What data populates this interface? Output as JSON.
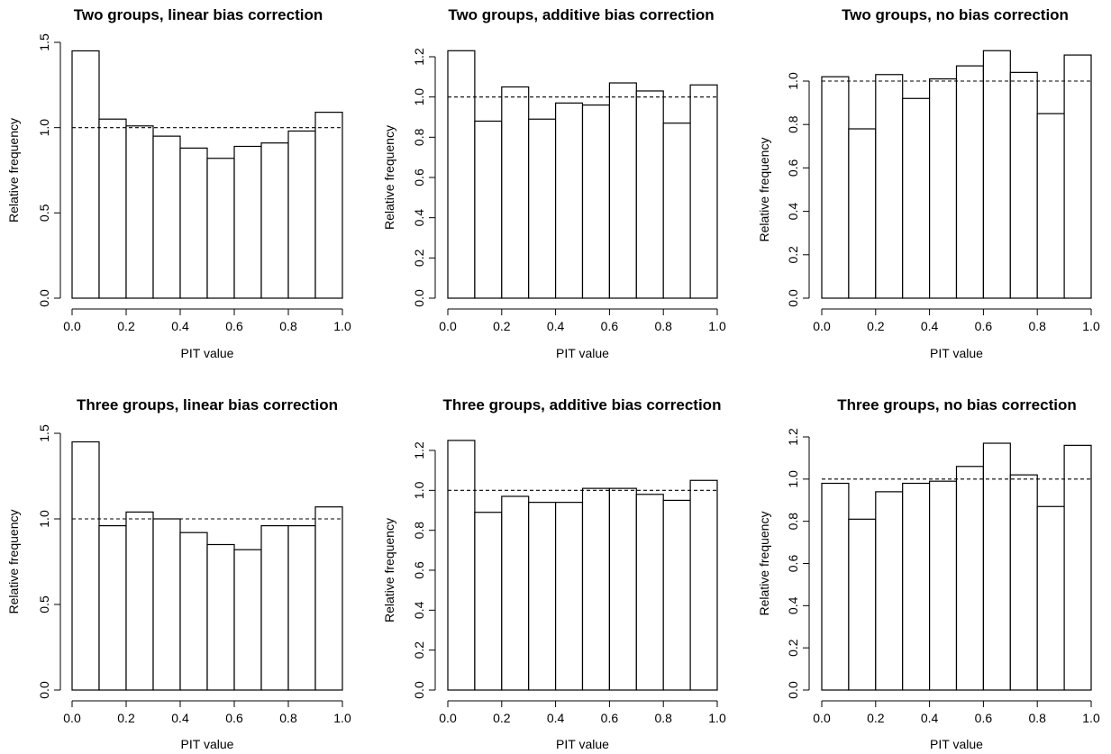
{
  "chart_data": [
    {
      "type": "bar",
      "title": "Two groups, linear bias correction",
      "xlabel": "PIT value",
      "ylabel": "Relative frequency",
      "bin_edges": [
        0.0,
        0.1,
        0.2,
        0.3,
        0.4,
        0.5,
        0.6,
        0.7,
        0.8,
        0.9,
        1.0
      ],
      "values": [
        1.45,
        1.05,
        1.01,
        0.95,
        0.88,
        0.82,
        0.89,
        0.91,
        0.98,
        1.09
      ],
      "reference_line": 1.0,
      "xlim": [
        0,
        1
      ],
      "ylim": [
        0,
        1.5
      ],
      "xticks": [
        "0.0",
        "0.2",
        "0.4",
        "0.6",
        "0.8",
        "1.0"
      ],
      "yticks": [
        "0.0",
        "0.5",
        "1.0",
        "1.5"
      ]
    },
    {
      "type": "bar",
      "title": "Two groups, additive bias correction",
      "xlabel": "PIT value",
      "ylabel": "Relative frequency",
      "bin_edges": [
        0.0,
        0.1,
        0.2,
        0.3,
        0.4,
        0.5,
        0.6,
        0.7,
        0.8,
        0.9,
        1.0
      ],
      "values": [
        1.23,
        0.88,
        1.05,
        0.89,
        0.97,
        0.96,
        1.07,
        1.03,
        0.87,
        1.06
      ],
      "reference_line": 1.0,
      "xlim": [
        0,
        1
      ],
      "ylim": [
        0,
        1.2
      ],
      "xticks": [
        "0.0",
        "0.2",
        "0.4",
        "0.6",
        "0.8",
        "1.0"
      ],
      "yticks": [
        "0.0",
        "0.2",
        "0.4",
        "0.6",
        "0.8",
        "1.0",
        "1.2"
      ]
    },
    {
      "type": "bar",
      "title": "Two groups, no bias correction",
      "xlabel": "PIT value",
      "ylabel": "Relative frequency",
      "bin_edges": [
        0.0,
        0.1,
        0.2,
        0.3,
        0.4,
        0.5,
        0.6,
        0.7,
        0.8,
        0.9,
        1.0
      ],
      "values": [
        1.02,
        0.78,
        1.03,
        0.92,
        1.01,
        1.07,
        1.14,
        1.04,
        0.85,
        1.12
      ],
      "reference_line": 1.0,
      "xlim": [
        0,
        1
      ],
      "ylim": [
        0,
        1.0
      ],
      "xticks": [
        "0.0",
        "0.2",
        "0.4",
        "0.6",
        "0.8",
        "1.0"
      ],
      "yticks": [
        "0.0",
        "0.2",
        "0.4",
        "0.6",
        "0.8",
        "1.0"
      ]
    },
    {
      "type": "bar",
      "title": "Three groups, linear bias correction",
      "xlabel": "PIT value",
      "ylabel": "Relative frequency",
      "bin_edges": [
        0.0,
        0.1,
        0.2,
        0.3,
        0.4,
        0.5,
        0.6,
        0.7,
        0.8,
        0.9,
        1.0
      ],
      "values": [
        1.45,
        0.96,
        1.04,
        1.0,
        0.92,
        0.85,
        0.82,
        0.96,
        0.96,
        1.07
      ],
      "reference_line": 1.0,
      "xlim": [
        0,
        1
      ],
      "ylim": [
        0,
        1.5
      ],
      "xticks": [
        "0.0",
        "0.2",
        "0.4",
        "0.6",
        "0.8",
        "1.0"
      ],
      "yticks": [
        "0.0",
        "0.5",
        "1.0",
        "1.5"
      ]
    },
    {
      "type": "bar",
      "title": "Three groups, additive bias correction",
      "xlabel": "PIT value",
      "ylabel": "Relative frequency",
      "bin_edges": [
        0.0,
        0.1,
        0.2,
        0.3,
        0.4,
        0.5,
        0.6,
        0.7,
        0.8,
        0.9,
        1.0
      ],
      "values": [
        1.25,
        0.89,
        0.97,
        0.94,
        0.94,
        1.01,
        1.01,
        0.98,
        0.95,
        1.05
      ],
      "reference_line": 1.0,
      "xlim": [
        0,
        1
      ],
      "ylim": [
        0,
        1.2
      ],
      "xticks": [
        "0.0",
        "0.2",
        "0.4",
        "0.6",
        "0.8",
        "1.0"
      ],
      "yticks": [
        "0.0",
        "0.2",
        "0.4",
        "0.6",
        "0.8",
        "1.0",
        "1.2"
      ]
    },
    {
      "type": "bar",
      "title": "Three groups, no bias correction",
      "xlabel": "PIT value",
      "ylabel": "Relative frequency",
      "bin_edges": [
        0.0,
        0.1,
        0.2,
        0.3,
        0.4,
        0.5,
        0.6,
        0.7,
        0.8,
        0.9,
        1.0
      ],
      "values": [
        0.98,
        0.81,
        0.94,
        0.98,
        0.99,
        1.06,
        1.17,
        1.02,
        0.87,
        1.16
      ],
      "reference_line": 1.0,
      "xlim": [
        0,
        1
      ],
      "ylim": [
        0,
        1.2
      ],
      "xticks": [
        "0.0",
        "0.2",
        "0.4",
        "0.6",
        "0.8",
        "1.0"
      ],
      "yticks": [
        "0.0",
        "0.2",
        "0.4",
        "0.6",
        "0.8",
        "1.0",
        "1.2"
      ]
    }
  ]
}
